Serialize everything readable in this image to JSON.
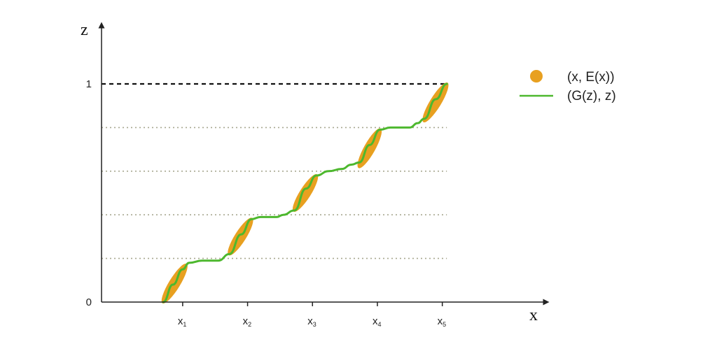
{
  "chart_data": {
    "type": "line",
    "xlabel": "x",
    "ylabel": "z",
    "x_ticks": [
      {
        "label": "x",
        "sub": "1",
        "x": 1
      },
      {
        "label": "x",
        "sub": "2",
        "x": 2
      },
      {
        "label": "x",
        "sub": "3",
        "x": 3
      },
      {
        "label": "x",
        "sub": "4",
        "x": 4
      },
      {
        "label": "x",
        "sub": "5",
        "x": 5
      }
    ],
    "y_ticks": [
      {
        "label": "0",
        "y": 0
      },
      {
        "label": "1",
        "y": 1
      }
    ],
    "xlim": [
      -0.25,
      6.6
    ],
    "ylim": [
      0,
      1
    ],
    "dotted_levels": [
      0.2,
      0.4,
      0.6,
      0.8
    ],
    "dashed_level": 1,
    "colors": {
      "orange": "#e8a020",
      "green": "#4db82e",
      "axis": "#222222",
      "dotted": "#a8a890"
    },
    "series": [
      {
        "name": "(x, E(x))",
        "kind": "scatter-blobs",
        "segments": [
          {
            "x0": 0.7,
            "x1": 1.05,
            "z0": 0.0,
            "z1": 0.17
          },
          {
            "x0": 1.72,
            "x1": 2.06,
            "z0": 0.22,
            "z1": 0.38
          },
          {
            "x0": 2.72,
            "x1": 3.06,
            "z0": 0.42,
            "z1": 0.58
          },
          {
            "x0": 3.72,
            "x1": 4.04,
            "z0": 0.62,
            "z1": 0.79
          },
          {
            "x0": 4.72,
            "x1": 5.07,
            "z0": 0.83,
            "z1": 1.0
          }
        ]
      },
      {
        "name": "(G(z), z)",
        "kind": "line",
        "points": [
          [
            0.7,
            0.0
          ],
          [
            0.85,
            0.08
          ],
          [
            1.0,
            0.15
          ],
          [
            1.1,
            0.18
          ],
          [
            1.3,
            0.19
          ],
          [
            1.55,
            0.19
          ],
          [
            1.72,
            0.22
          ],
          [
            1.9,
            0.31
          ],
          [
            2.06,
            0.38
          ],
          [
            2.2,
            0.39
          ],
          [
            2.45,
            0.39
          ],
          [
            2.55,
            0.4
          ],
          [
            2.72,
            0.42
          ],
          [
            2.9,
            0.52
          ],
          [
            3.06,
            0.58
          ],
          [
            3.25,
            0.6
          ],
          [
            3.45,
            0.61
          ],
          [
            3.6,
            0.63
          ],
          [
            3.72,
            0.64
          ],
          [
            3.88,
            0.72
          ],
          [
            4.04,
            0.79
          ],
          [
            4.2,
            0.8
          ],
          [
            4.5,
            0.8
          ],
          [
            4.62,
            0.82
          ],
          [
            4.72,
            0.84
          ],
          [
            4.9,
            0.93
          ],
          [
            5.07,
            1.0
          ]
        ]
      }
    ],
    "legend": {
      "position": "top-right",
      "entries": [
        {
          "label": "(x, E(x))",
          "marker": "dot"
        },
        {
          "label": "(G(z), z)",
          "marker": "line"
        }
      ]
    }
  }
}
